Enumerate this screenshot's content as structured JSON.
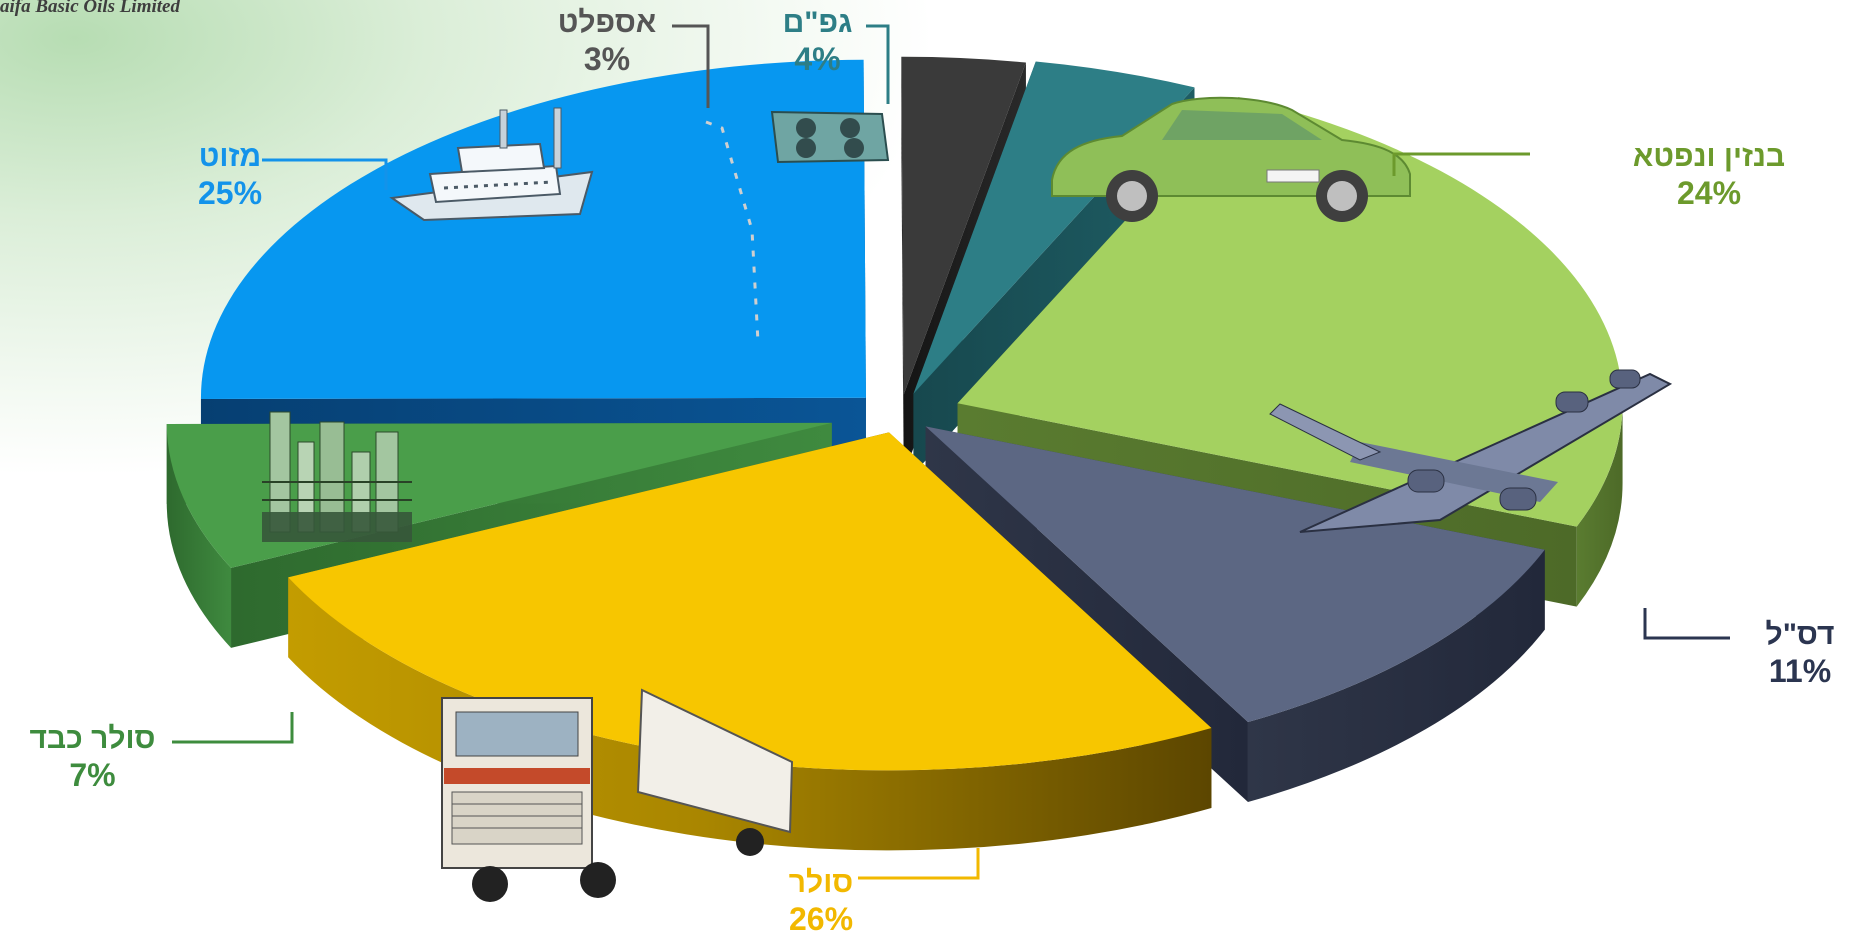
{
  "header": {
    "company": "aifa Basic Oils Limited"
  },
  "chart_data": {
    "type": "pie",
    "three_d": true,
    "slices": [
      {
        "name": "בנזין ונפטא",
        "pct_label": "24%",
        "value": 24,
        "color": "#a4d160",
        "icon": "car-icon"
      },
      {
        "name": "דס\"ל",
        "pct_label": "11%",
        "value": 11,
        "color": "#5c6783",
        "icon": "airplane-icon"
      },
      {
        "name": "סולר",
        "pct_label": "26%",
        "value": 26,
        "color": "#f7c600",
        "icon": "truck-icon"
      },
      {
        "name": "סולר כבד",
        "pct_label": "7%",
        "value": 7,
        "color": "#4a9e4a",
        "icon": "refinery-icon"
      },
      {
        "name": "מזוט",
        "pct_label": "25%",
        "value": 25,
        "color": "#0797f0",
        "icon": "ship-icon"
      },
      {
        "name": "אספלט",
        "pct_label": "3%",
        "value": 3,
        "color": "#3a3a3a",
        "icon": "road-icon"
      },
      {
        "name": "גפ\"ם",
        "pct_label": "4%",
        "value": 4,
        "color": "#2d7e86",
        "icon": "gas-stove-icon"
      }
    ]
  }
}
